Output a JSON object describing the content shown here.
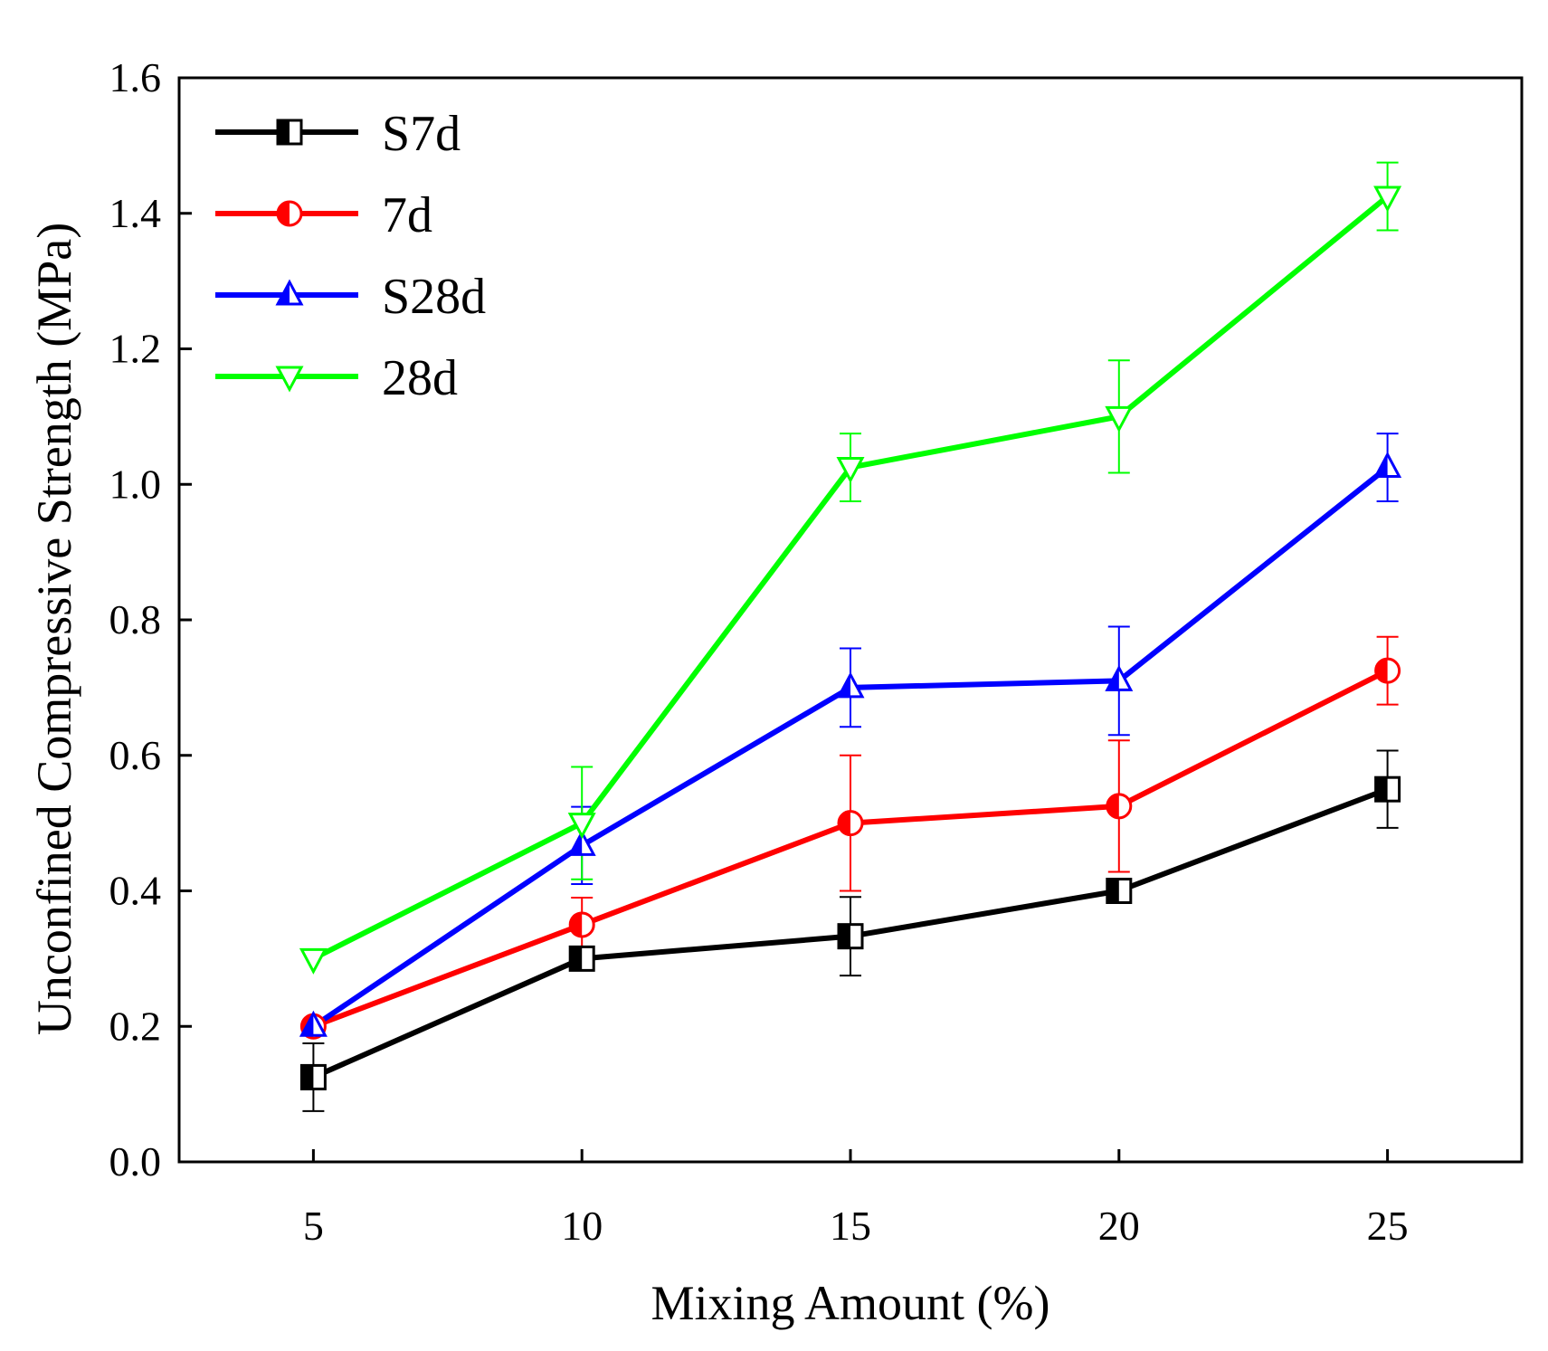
{
  "chart_data": {
    "type": "line",
    "title": "",
    "xlabel": "Mixing Amount (%)",
    "ylabel": "Unconfined Compressive Strength (MPa)",
    "x": [
      5,
      10,
      15,
      20,
      25
    ],
    "xlim": [
      2.5,
      27.5
    ],
    "ylim": [
      0.0,
      1.6
    ],
    "xticks": [
      "5",
      "10",
      "15",
      "20",
      "25"
    ],
    "yticks": [
      "0.0",
      "0.2",
      "0.4",
      "0.6",
      "0.8",
      "1.0",
      "1.2",
      "1.4",
      "1.6"
    ],
    "grid": false,
    "legend_position": "top-left",
    "series": [
      {
        "name": "S7d",
        "color": "#000000",
        "marker": "square-half",
        "values": [
          0.125,
          0.3,
          0.333,
          0.4,
          0.55
        ],
        "errors": [
          0.05,
          0.0,
          0.058,
          0.0,
          0.057
        ]
      },
      {
        "name": "7d",
        "color": "#ff0000",
        "marker": "circle-half",
        "values": [
          0.2,
          0.35,
          0.5,
          0.525,
          0.725
        ],
        "errors": [
          0.0,
          0.04,
          0.1,
          0.097,
          0.05
        ]
      },
      {
        "name": "S28d",
        "color": "#0000ff",
        "marker": "triangle-up",
        "values": [
          0.2,
          0.467,
          0.7,
          0.71,
          1.025
        ],
        "errors": [
          0.0,
          0.057,
          0.058,
          0.08,
          0.05
        ]
      },
      {
        "name": "28d",
        "color": "#00ff00",
        "marker": "triangle-down",
        "values": [
          0.3,
          0.5,
          1.025,
          1.1,
          1.425
        ],
        "errors": [
          0.0,
          0.083,
          0.05,
          0.083,
          0.05
        ]
      }
    ]
  }
}
